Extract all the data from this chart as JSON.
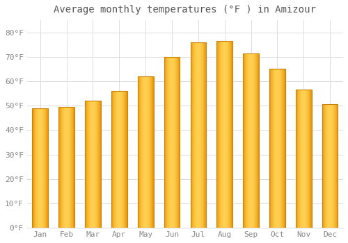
{
  "title": "Average monthly temperatures (°F ) in Amizour",
  "months": [
    "Jan",
    "Feb",
    "Mar",
    "Apr",
    "May",
    "Jun",
    "Jul",
    "Aug",
    "Sep",
    "Oct",
    "Nov",
    "Dec"
  ],
  "values": [
    49,
    49.5,
    52,
    56,
    62,
    70,
    76,
    76.5,
    71.5,
    65,
    56.5,
    50.5
  ],
  "bar_color_main": "#FFC020",
  "bar_color_left": "#E8960A",
  "bar_color_right": "#E8960A",
  "bar_edge_color": "#C8820A",
  "background_color": "#FFFFFF",
  "grid_color": "#DDDDDD",
  "ylim": [
    0,
    85
  ],
  "yticks": [
    0,
    10,
    20,
    30,
    40,
    50,
    60,
    70,
    80
  ],
  "title_fontsize": 10,
  "tick_fontsize": 8,
  "tick_color": "#888888",
  "figsize": [
    5.0,
    3.5
  ],
  "dpi": 100
}
